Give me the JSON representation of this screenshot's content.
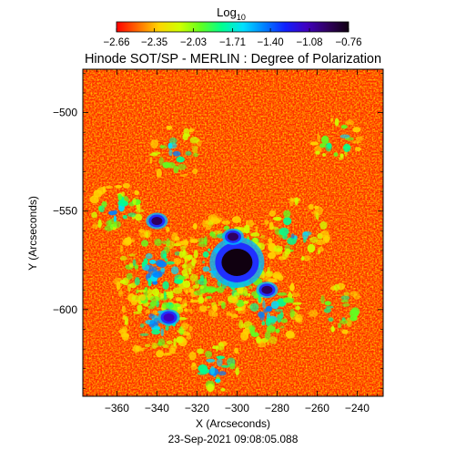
{
  "chart_data": {
    "type": "heatmap",
    "title": "Hinode SOT/SP - MERLIN : Degree of Polarization",
    "footer": "23-Sep-2021 09:08:05.088",
    "xlabel": "X (Arcseconds)",
    "ylabel": "Y (Arcseconds)",
    "xlim": [
      -377,
      -227
    ],
    "ylim": [
      -644,
      -478
    ],
    "x_ticks": [
      -360,
      -340,
      -320,
      -300,
      -280,
      -260,
      -240
    ],
    "y_ticks": [
      -500,
      -550,
      -600
    ],
    "x_tick_labels": [
      "−360",
      "−340",
      "−320",
      "−300",
      "−280",
      "−260",
      "−240"
    ],
    "y_tick_labels": [
      "−500",
      "−550",
      "−600"
    ],
    "colorbar": {
      "title_main": "Log",
      "title_sub": "10",
      "range": [
        -2.66,
        -0.76
      ],
      "tick_values": [
        -2.66,
        -2.35,
        -2.03,
        -1.71,
        -1.4,
        -1.08,
        -0.76
      ],
      "tick_labels": [
        "−2.66",
        "−2.35",
        "−2.03",
        "−1.71",
        "−1.40",
        "−1.08",
        "−0.76"
      ],
      "colormap": [
        "#ff0000",
        "#ff6a00",
        "#ffd400",
        "#d0ff00",
        "#60ff20",
        "#00ff90",
        "#00e0ff",
        "#0080ff",
        "#1020ff",
        "#4000c0",
        "#300060",
        "#100010"
      ]
    },
    "features": [
      {
        "label": "sunspot umbra",
        "x": -300,
        "y": -576,
        "level": -0.78
      },
      {
        "label": "pore",
        "x": -340,
        "y": -555,
        "level": -0.95
      },
      {
        "label": "pore",
        "x": -334,
        "y": -604,
        "level": -1.05
      },
      {
        "label": "pore",
        "x": -285,
        "y": -590,
        "level": -0.95
      },
      {
        "label": "pore",
        "x": -302,
        "y": -563,
        "level": -0.9
      }
    ]
  }
}
